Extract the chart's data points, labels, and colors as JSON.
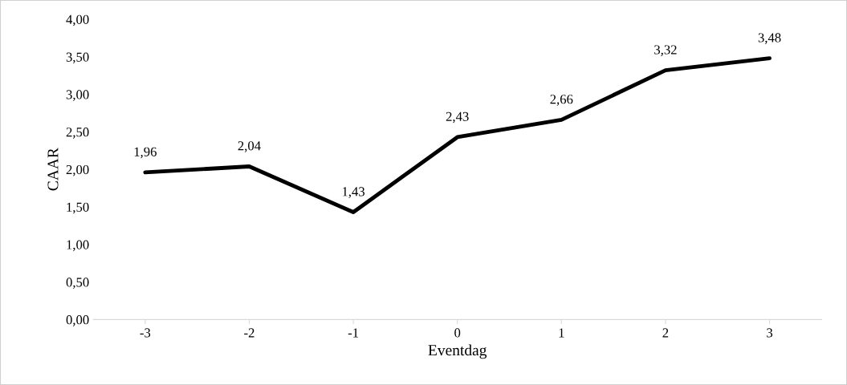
{
  "chart_data": {
    "type": "line",
    "xlabel": "Eventdag",
    "ylabel": "CAAR",
    "categories": [
      "-3",
      "-2",
      "-1",
      "0",
      "1",
      "2",
      "3"
    ],
    "values": [
      1.96,
      2.04,
      1.43,
      2.43,
      2.66,
      3.32,
      3.48
    ],
    "value_labels": [
      "1,96",
      "2,04",
      "1,43",
      "2,43",
      "2,66",
      "3,32",
      "3,48"
    ],
    "color": "#000000",
    "ylim": [
      0,
      4
    ],
    "yticks": [
      {
        "value": 0,
        "label": "0,00"
      },
      {
        "value": 0.5,
        "label": "0,50"
      },
      {
        "value": 1,
        "label": "1,00"
      },
      {
        "value": 1.5,
        "label": "1,50"
      },
      {
        "value": 2,
        "label": "2,00"
      },
      {
        "value": 2.5,
        "label": "2,50"
      },
      {
        "value": 3,
        "label": "3,00"
      },
      {
        "value": 3.5,
        "label": "3,50"
      },
      {
        "value": 4,
        "label": "4,00"
      }
    ],
    "grid": false,
    "legend": false,
    "marker": "none",
    "line_style": "solid"
  }
}
